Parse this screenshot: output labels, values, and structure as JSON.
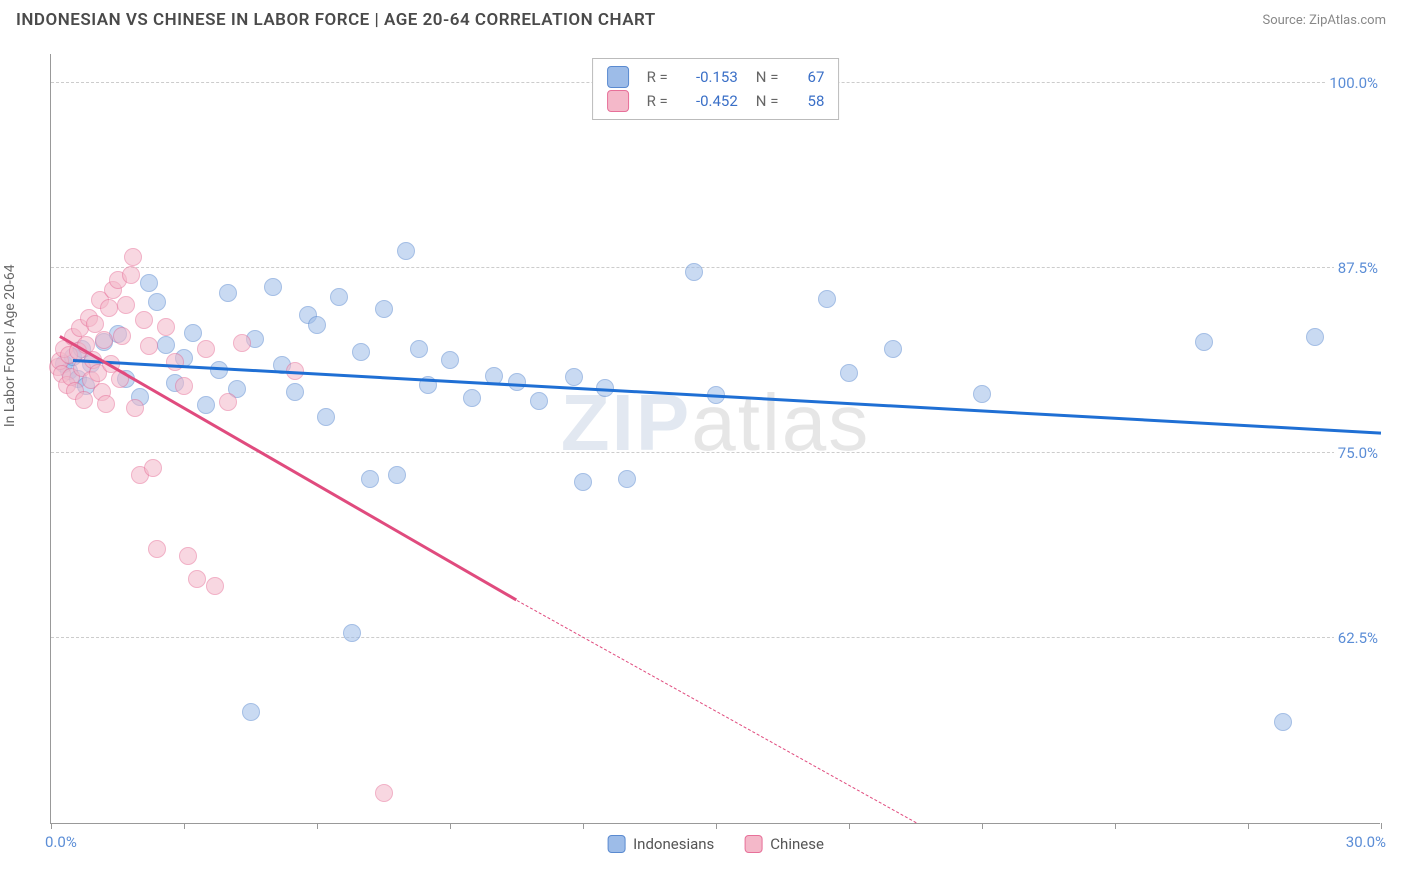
{
  "title": "INDONESIAN VS CHINESE IN LABOR FORCE | AGE 20-64 CORRELATION CHART",
  "source": "Source: ZipAtlas.com",
  "watermark": {
    "part1": "ZIP",
    "part2": "atlas"
  },
  "y_axis": {
    "label": "In Labor Force | Age 20-64"
  },
  "chart": {
    "type": "scatter",
    "background_color": "#ffffff",
    "grid_color": "#cccccc",
    "xlim": [
      0,
      30
    ],
    "ylim": [
      50,
      102
    ],
    "x_ticks": [
      0,
      3,
      6,
      9,
      12,
      15,
      18,
      21,
      24,
      27,
      30
    ],
    "x_tick_labels": {
      "min": "0.0%",
      "max": "30.0%"
    },
    "y_gridlines": [
      62.5,
      75.0,
      87.5,
      100.0
    ],
    "y_tick_labels": [
      "62.5%",
      "75.0%",
      "87.5%",
      "100.0%"
    ],
    "marker_radius": 9,
    "marker_opacity": 0.55,
    "marker_stroke_opacity": 0.9,
    "series": [
      {
        "name": "Indonesians",
        "color_fill": "#9dbce8",
        "color_stroke": "#5a8ad0",
        "line_color": "#1f6fd4",
        "R": "-0.153",
        "N": "67",
        "trend": {
          "x1": 0.5,
          "y1": 81.2,
          "x2": 30,
          "y2": 76.3
        },
        "points": [
          [
            0.3,
            81
          ],
          [
            0.4,
            80.5
          ],
          [
            0.5,
            81.5
          ],
          [
            0.6,
            80
          ],
          [
            0.7,
            82
          ],
          [
            0.8,
            79.5
          ],
          [
            0.9,
            81
          ],
          [
            1.2,
            82.5
          ],
          [
            1.5,
            83
          ],
          [
            1.7,
            80
          ],
          [
            2.0,
            78.8
          ],
          [
            2.2,
            86.5
          ],
          [
            2.4,
            85.2
          ],
          [
            2.6,
            82.3
          ],
          [
            2.8,
            79.7
          ],
          [
            3.0,
            81.4
          ],
          [
            3.2,
            83.1
          ],
          [
            3.5,
            78.2
          ],
          [
            3.8,
            80.6
          ],
          [
            4.0,
            85.8
          ],
          [
            4.2,
            79.3
          ],
          [
            4.5,
            57.5
          ],
          [
            4.6,
            82.7
          ],
          [
            5.0,
            86.2
          ],
          [
            5.2,
            80.9
          ],
          [
            5.5,
            79.1
          ],
          [
            5.8,
            84.3
          ],
          [
            6.0,
            83.6
          ],
          [
            6.2,
            77.4
          ],
          [
            6.5,
            85.5
          ],
          [
            6.8,
            62.8
          ],
          [
            7.0,
            81.8
          ],
          [
            7.2,
            73.2
          ],
          [
            7.5,
            84.7
          ],
          [
            7.8,
            73.5
          ],
          [
            8.0,
            88.6
          ],
          [
            8.3,
            82.0
          ],
          [
            8.5,
            79.6
          ],
          [
            9.0,
            81.3
          ],
          [
            9.5,
            78.7
          ],
          [
            10.0,
            80.2
          ],
          [
            10.5,
            79.8
          ],
          [
            11.0,
            78.5
          ],
          [
            11.8,
            80.1
          ],
          [
            12.0,
            73.0
          ],
          [
            12.5,
            79.4
          ],
          [
            13.0,
            73.2
          ],
          [
            14.5,
            87.2
          ],
          [
            15.0,
            78.9
          ],
          [
            17.5,
            85.4
          ],
          [
            18.0,
            80.4
          ],
          [
            19.0,
            82.0
          ],
          [
            21.0,
            79.0
          ],
          [
            26.0,
            82.5
          ],
          [
            27.8,
            56.8
          ],
          [
            28.5,
            82.8
          ]
        ]
      },
      {
        "name": "Chinese",
        "color_fill": "#f4b8c9",
        "color_stroke": "#e77099",
        "line_color": "#e04b7e",
        "R": "-0.452",
        "N": "58",
        "trend": {
          "x1": 0.2,
          "y1": 82.8,
          "x2": 10.5,
          "y2": 65.0
        },
        "trend_dash": {
          "x1": 10.5,
          "y1": 65.0,
          "x2": 19.5,
          "y2": 50.0
        },
        "points": [
          [
            0.15,
            80.8
          ],
          [
            0.2,
            81.2
          ],
          [
            0.25,
            80.3
          ],
          [
            0.3,
            82.0
          ],
          [
            0.35,
            79.6
          ],
          [
            0.4,
            81.6
          ],
          [
            0.45,
            80.1
          ],
          [
            0.5,
            82.8
          ],
          [
            0.55,
            79.2
          ],
          [
            0.6,
            81.9
          ],
          [
            0.65,
            83.4
          ],
          [
            0.7,
            80.7
          ],
          [
            0.75,
            78.6
          ],
          [
            0.8,
            82.3
          ],
          [
            0.85,
            84.1
          ],
          [
            0.9,
            79.9
          ],
          [
            0.95,
            81.3
          ],
          [
            1.0,
            83.7
          ],
          [
            1.05,
            80.4
          ],
          [
            1.1,
            85.3
          ],
          [
            1.15,
            79.1
          ],
          [
            1.2,
            82.6
          ],
          [
            1.25,
            78.3
          ],
          [
            1.3,
            84.8
          ],
          [
            1.35,
            81.0
          ],
          [
            1.4,
            86.0
          ],
          [
            1.5,
            86.7
          ],
          [
            1.55,
            80.0
          ],
          [
            1.6,
            82.9
          ],
          [
            1.7,
            85.0
          ],
          [
            1.8,
            87.0
          ],
          [
            1.85,
            88.2
          ],
          [
            1.9,
            78.0
          ],
          [
            2.0,
            73.5
          ],
          [
            2.1,
            84.0
          ],
          [
            2.2,
            82.2
          ],
          [
            2.3,
            74.0
          ],
          [
            2.4,
            68.5
          ],
          [
            2.6,
            83.5
          ],
          [
            2.8,
            81.1
          ],
          [
            3.0,
            79.5
          ],
          [
            3.1,
            68.0
          ],
          [
            3.3,
            66.5
          ],
          [
            3.5,
            82.0
          ],
          [
            3.7,
            66.0
          ],
          [
            4.0,
            78.4
          ],
          [
            4.3,
            82.4
          ],
          [
            5.5,
            80.5
          ],
          [
            7.5,
            52.0
          ]
        ]
      }
    ],
    "bottom_legend": [
      {
        "label": "Indonesians",
        "fill": "#9dbce8",
        "stroke": "#5a8ad0"
      },
      {
        "label": "Chinese",
        "fill": "#f4b8c9",
        "stroke": "#e77099"
      }
    ]
  }
}
